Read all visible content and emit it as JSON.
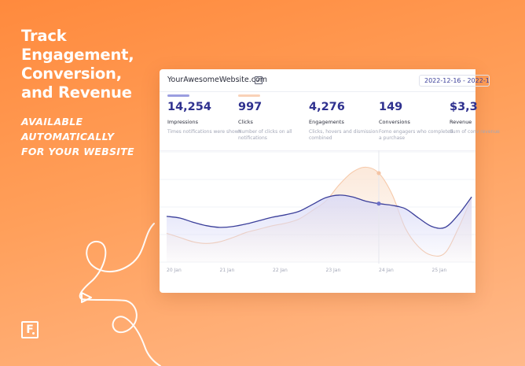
{
  "headline": [
    "Track",
    "Engagement,",
    "Conversion,",
    "and Revenue"
  ],
  "subheadline": [
    "AVAILABLE",
    "AUTOMATICALLY",
    "FOR YOUR WEBSITE"
  ],
  "logo_letter": "F",
  "dashboard": {
    "site_name": "YourAwesomeWebsite.com",
    "date_range": "2022-12-16 - 2022-1",
    "metrics": [
      {
        "value": "14,254",
        "label": "Impressions",
        "description": "Times notifications were shown",
        "color": "#9b9ee0"
      },
      {
        "value": "997",
        "label": "Clicks",
        "description": "Number of clicks on all notifications",
        "color": "#f9d2b8"
      },
      {
        "value": "4,276",
        "label": "Engagements",
        "description": "Clicks, hovers and dismission combined",
        "color": ""
      },
      {
        "value": "149",
        "label": "Conversions",
        "description": "Fomo engagers who completed a purchase",
        "color": ""
      },
      {
        "value": "$3,3",
        "label": "Revenue",
        "description": "Sum of conv revenue",
        "color": ""
      }
    ]
  },
  "chart_data": {
    "type": "line",
    "categories": [
      "20 Jan",
      "21 Jan",
      "22 Jan",
      "23 Jan",
      "24 Jan",
      "25 Jan"
    ],
    "x": [
      0,
      0.25,
      0.5,
      0.75,
      1,
      1.25,
      1.5,
      1.75,
      2,
      2.25,
      2.5,
      2.75,
      3,
      3.25,
      3.5,
      3.75,
      4,
      4.25,
      4.5,
      4.75,
      5,
      5.25,
      5.5,
      5.75
    ],
    "series": [
      {
        "values": [
          54,
          52,
          47,
          43,
          41,
          42,
          45,
          49,
          53,
          56,
          60,
          68,
          76,
          79,
          77,
          72,
          69,
          67,
          63,
          52,
          42,
          41,
          56,
          77
        ],
        "color": "#3b3f9a",
        "fill": "#d9daf7"
      },
      {
        "values": [
          34,
          29,
          24,
          22,
          24,
          29,
          35,
          39,
          43,
          46,
          51,
          61,
          72,
          91,
          106,
          112,
          105,
          80,
          40,
          18,
          8,
          11,
          40,
          76
        ],
        "color": "#f6c9a9",
        "fill": "#fbe5d4"
      }
    ],
    "highlight_index": 16,
    "ylim": [
      0,
      130
    ],
    "grid": true
  }
}
